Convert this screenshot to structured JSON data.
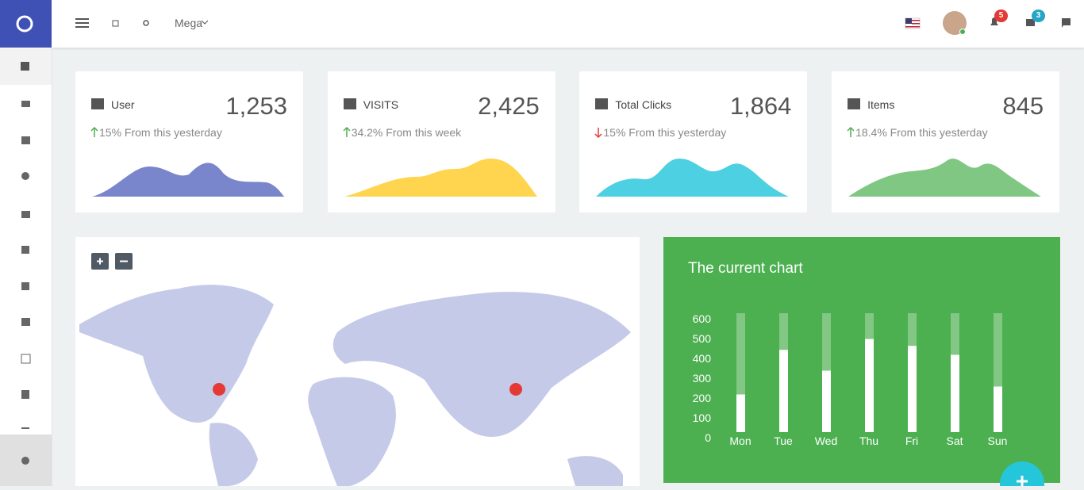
{
  "topbar": {
    "menu": "Mega",
    "notifications_badge": "5",
    "messages_badge": "3"
  },
  "stats": [
    {
      "label": "User",
      "value": "1,253",
      "change": "15% From this yesterday",
      "trend": "up",
      "color": "#7986cb"
    },
    {
      "label": "VISITS",
      "value": "2,425",
      "change": "34.2% From this week",
      "trend": "up",
      "color": "#ffd54f"
    },
    {
      "label": "Total Clicks",
      "value": "1,864",
      "change": "15% From this yesterday",
      "trend": "down",
      "color": "#4dd0e1"
    },
    {
      "label": "Items",
      "value": "845",
      "change": "18.4% From this yesterday",
      "trend": "up",
      "color": "#81c784"
    }
  ],
  "chart_data": {
    "type": "bar",
    "title": "The current chart",
    "categories": [
      "Mon",
      "Tue",
      "Wed",
      "Thu",
      "Fri",
      "Sat",
      "Sun"
    ],
    "values": [
      190,
      415,
      310,
      470,
      435,
      390,
      230
    ],
    "ylim": [
      0,
      600
    ],
    "yticks": [
      0,
      100,
      200,
      300,
      400,
      500,
      600
    ],
    "color": "#ffffff"
  }
}
